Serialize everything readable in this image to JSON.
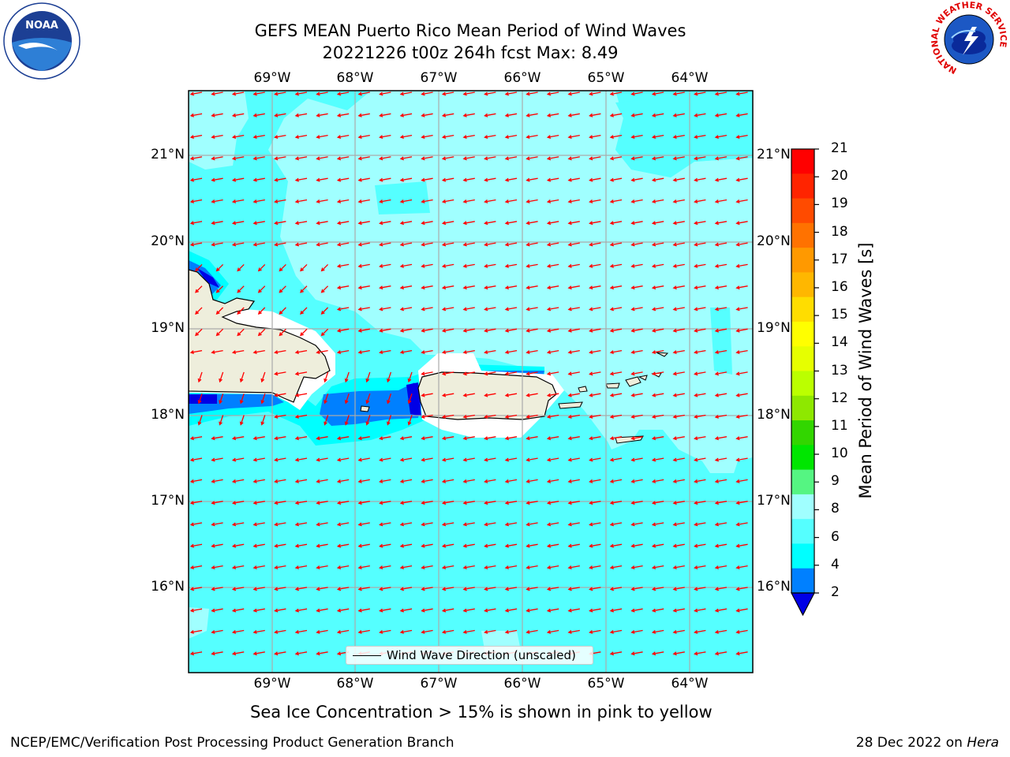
{
  "title_line1": "GEFS MEAN Puerto Rico Mean Period of Wind Waves",
  "title_line2": "20221226 t00z 264h fcst   Max: 8.49",
  "longitudes": [
    "69°W",
    "68°W",
    "67°W",
    "66°W",
    "65°W",
    "64°W"
  ],
  "latitudes": [
    "21°N",
    "20°N",
    "19°N",
    "18°N",
    "17°N",
    "16°N"
  ],
  "legend_label": "Wind Wave Direction (unscaled)",
  "subtitle": "Sea Ice Concentration > 15% is shown in pink to yellow",
  "footer_left": "NCEP/EMC/Verification Post Processing Product Generation Branch",
  "footer_date": "28 Dec 2022 on ",
  "footer_host": "Hera",
  "colorbar": {
    "label": "Mean Period of Wind Waves [s]",
    "ticks": [
      "21",
      "20",
      "19",
      "18",
      "17",
      "16",
      "15",
      "14",
      "13",
      "12",
      "11",
      "10",
      "9",
      "8",
      "6",
      "4",
      "2"
    ],
    "colors": [
      "#ff0000",
      "#ff2400",
      "#ff4b00",
      "#ff7200",
      "#ff9900",
      "#ffb700",
      "#ffdd00",
      "#ffff00",
      "#e6ff00",
      "#bbff00",
      "#8ee800",
      "#32d600",
      "#00e600",
      "#55f582",
      "#a0ffff",
      "#55ffff",
      "#00ffff",
      "#0080ff"
    ],
    "under_color": "#0000e6"
  },
  "colors": {
    "ocean_8_9": "#a0ffff",
    "ocean_6_8": "#55ffff",
    "ocean_4_6": "#00ffff",
    "ocean_2_4": "#0080ff",
    "ocean_below_2": "#0000e6",
    "land": "#eeeedc",
    "arrow": "#ff0000"
  },
  "logos": {
    "noaa": "NOAA",
    "nws": "NATIONAL WEATHER SERVICE"
  }
}
